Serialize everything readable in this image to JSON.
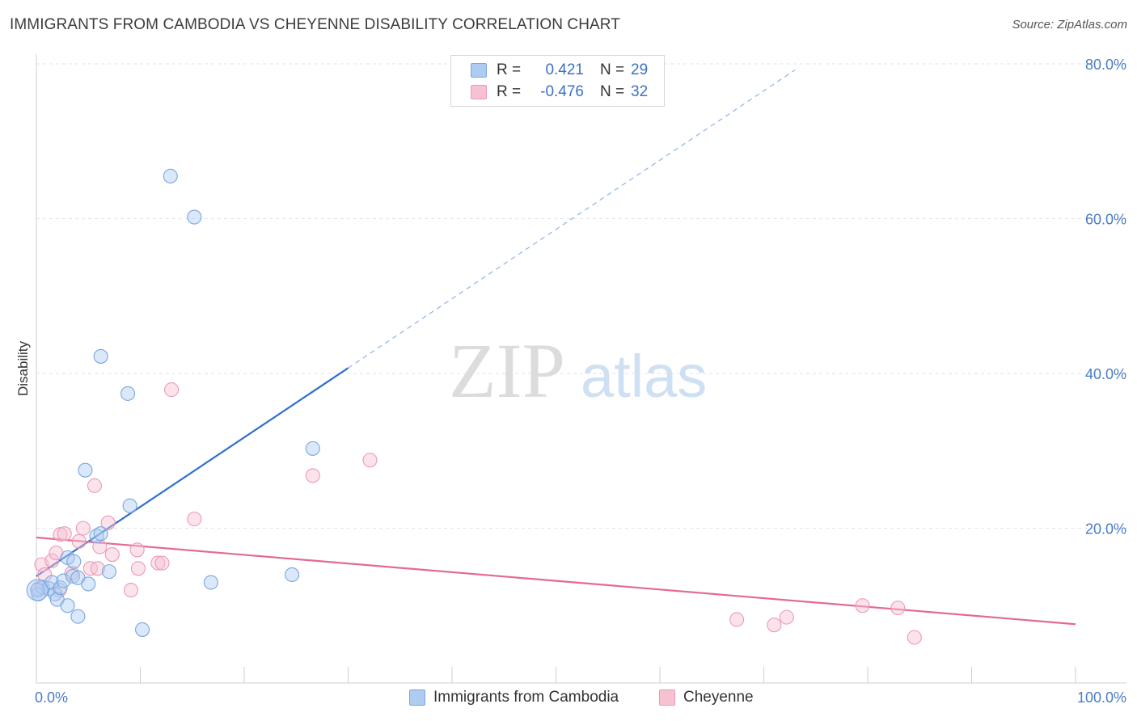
{
  "title": "IMMIGRANTS FROM CAMBODIA VS CHEYENNE DISABILITY CORRELATION CHART",
  "source": "Source: ZipAtlas.com",
  "watermark": {
    "zip": "ZIP",
    "atlas": "atlas"
  },
  "legend": {
    "rows": [
      {
        "r_label": "R =",
        "r_value": "0.421",
        "n_label": "N =",
        "n_value": "29",
        "color": "#aecbf2"
      },
      {
        "r_label": "R =",
        "r_value": "-0.476",
        "n_label": "N =",
        "n_value": "32",
        "color": "#f6c2d2"
      }
    ]
  },
  "bottom_legend": [
    {
      "label": "Immigrants from Cambodia",
      "color": "#aecbf2"
    },
    {
      "label": "Cheyenne",
      "color": "#f6c2d2"
    }
  ],
  "chart_data": {
    "type": "scatter",
    "title": "IMMIGRANTS FROM CAMBODIA VS CHEYENNE DISABILITY CORRELATION CHART",
    "xlabel": "",
    "ylabel": "Disability",
    "xlim": [
      0,
      100
    ],
    "ylim": [
      0,
      80
    ],
    "x_tick_labels": [
      "0.0%",
      "100.0%"
    ],
    "y_ticks": [
      20,
      40,
      60,
      80
    ],
    "y_tick_labels": [
      "20.0%",
      "40.0%",
      "60.0%",
      "80.0%"
    ],
    "grid": true,
    "series": [
      {
        "name": "Immigrants from Cambodia",
        "color": "#5b8fd6",
        "fill": "#aecbf2",
        "points": [
          {
            "x": 0.2,
            "y": 11.5
          },
          {
            "x": 0.6,
            "y": 12.4
          },
          {
            "x": 1.2,
            "y": 12.2
          },
          {
            "x": 1.5,
            "y": 13.0
          },
          {
            "x": 1.8,
            "y": 11.5
          },
          {
            "x": 2.0,
            "y": 10.8
          },
          {
            "x": 2.3,
            "y": 12.3
          },
          {
            "x": 2.6,
            "y": 13.2
          },
          {
            "x": 3.0,
            "y": 16.2
          },
          {
            "x": 3.0,
            "y": 10.0
          },
          {
            "x": 3.5,
            "y": 13.8
          },
          {
            "x": 3.6,
            "y": 15.7
          },
          {
            "x": 4.0,
            "y": 8.6
          },
          {
            "x": 4.0,
            "y": 13.6
          },
          {
            "x": 4.7,
            "y": 27.5
          },
          {
            "x": 5.0,
            "y": 12.8
          },
          {
            "x": 5.8,
            "y": 19.0
          },
          {
            "x": 6.2,
            "y": 19.3
          },
          {
            "x": 6.2,
            "y": 42.2
          },
          {
            "x": 7.0,
            "y": 14.4
          },
          {
            "x": 8.8,
            "y": 37.4
          },
          {
            "x": 9.0,
            "y": 22.9
          },
          {
            "x": 10.2,
            "y": 6.9
          },
          {
            "x": 12.9,
            "y": 65.5
          },
          {
            "x": 15.2,
            "y": 60.2
          },
          {
            "x": 16.8,
            "y": 13.0
          },
          {
            "x": 24.6,
            "y": 14.0
          },
          {
            "x": 26.6,
            "y": 30.3
          },
          {
            "x": 0.1,
            "y": 12.0
          }
        ],
        "trend": {
          "x0": 0.0,
          "y0": 13.8,
          "x1": 30.0,
          "y1": 40.7,
          "dash_to_x": 73.0,
          "dash_to_y": 79.2
        }
      },
      {
        "name": "Cheyenne",
        "color": "#e8769c",
        "fill": "#f6c2d2",
        "points": [
          {
            "x": 0.2,
            "y": 12.2
          },
          {
            "x": 0.5,
            "y": 15.3
          },
          {
            "x": 0.8,
            "y": 14.0
          },
          {
            "x": 1.5,
            "y": 15.8
          },
          {
            "x": 1.9,
            "y": 16.8
          },
          {
            "x": 2.2,
            "y": 12.0
          },
          {
            "x": 2.3,
            "y": 19.2
          },
          {
            "x": 2.7,
            "y": 19.3
          },
          {
            "x": 3.4,
            "y": 14.2
          },
          {
            "x": 4.1,
            "y": 18.3
          },
          {
            "x": 4.5,
            "y": 20.0
          },
          {
            "x": 5.2,
            "y": 14.8
          },
          {
            "x": 5.6,
            "y": 25.5
          },
          {
            "x": 5.9,
            "y": 14.8
          },
          {
            "x": 6.1,
            "y": 17.6
          },
          {
            "x": 6.9,
            "y": 20.7
          },
          {
            "x": 7.3,
            "y": 16.6
          },
          {
            "x": 9.1,
            "y": 12.0
          },
          {
            "x": 9.7,
            "y": 17.2
          },
          {
            "x": 9.8,
            "y": 14.8
          },
          {
            "x": 11.7,
            "y": 15.5
          },
          {
            "x": 12.1,
            "y": 15.5
          },
          {
            "x": 13.0,
            "y": 37.9
          },
          {
            "x": 15.2,
            "y": 21.2
          },
          {
            "x": 26.6,
            "y": 26.8
          },
          {
            "x": 32.1,
            "y": 28.8
          },
          {
            "x": 67.4,
            "y": 8.2
          },
          {
            "x": 71.0,
            "y": 7.5
          },
          {
            "x": 72.2,
            "y": 8.5
          },
          {
            "x": 79.5,
            "y": 10.0
          },
          {
            "x": 82.9,
            "y": 9.7
          },
          {
            "x": 84.5,
            "y": 5.9
          }
        ],
        "trend": {
          "x0": 0.0,
          "y0": 18.8,
          "x1": 100.0,
          "y1": 7.6
        }
      }
    ]
  }
}
